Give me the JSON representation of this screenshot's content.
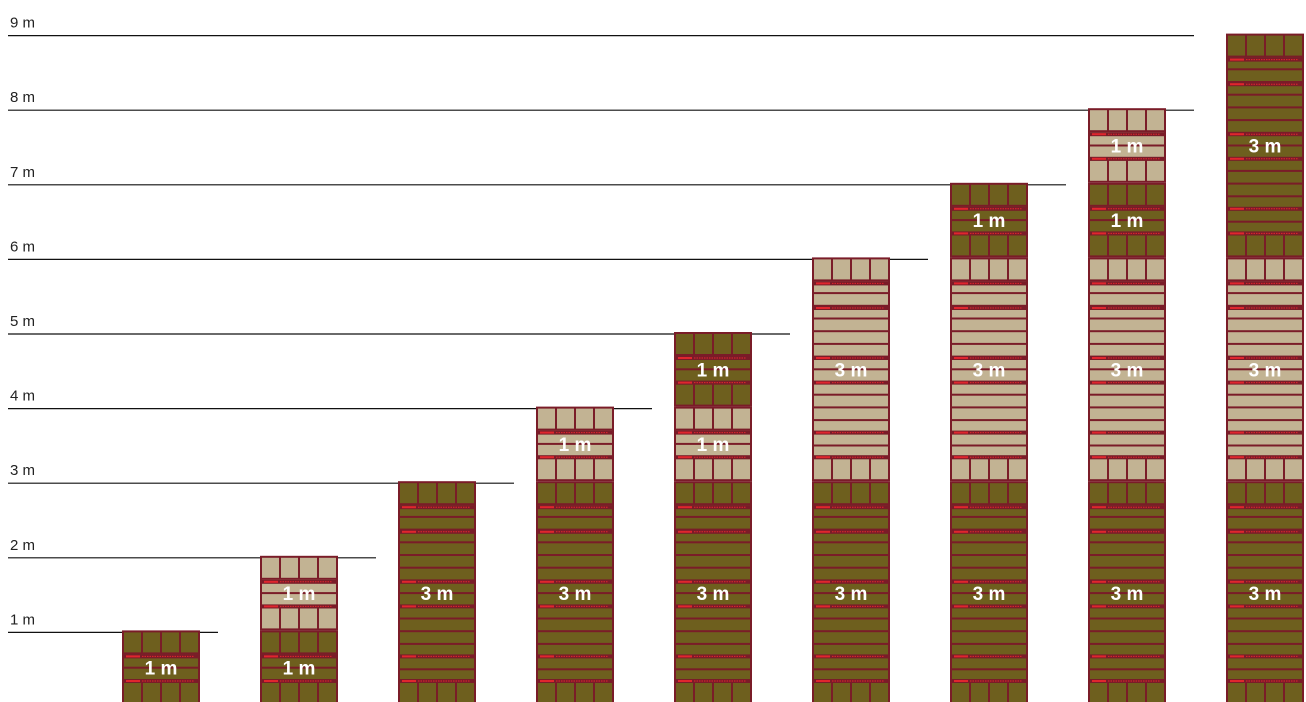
{
  "levels": [
    {
      "label": "1 m"
    },
    {
      "label": "2 m"
    },
    {
      "label": "3 m"
    },
    {
      "label": "4 m"
    },
    {
      "label": "5 m"
    },
    {
      "label": "6 m"
    },
    {
      "label": "7 m"
    },
    {
      "label": "8 m"
    },
    {
      "label": "9 m"
    }
  ],
  "columns": [
    {
      "modules": [
        {
          "size": 1,
          "label": "1 m",
          "color": "dark"
        }
      ]
    },
    {
      "modules": [
        {
          "size": 1,
          "label": "1 m",
          "color": "dark"
        },
        {
          "size": 1,
          "label": "1 m",
          "color": "light"
        }
      ]
    },
    {
      "modules": [
        {
          "size": 3,
          "label": "3 m",
          "color": "dark"
        }
      ]
    },
    {
      "modules": [
        {
          "size": 3,
          "label": "3 m",
          "color": "dark"
        },
        {
          "size": 1,
          "label": "1 m",
          "color": "light"
        }
      ]
    },
    {
      "modules": [
        {
          "size": 3,
          "label": "3 m",
          "color": "dark"
        },
        {
          "size": 1,
          "label": "1 m",
          "color": "light"
        },
        {
          "size": 1,
          "label": "1 m",
          "color": "dark"
        }
      ]
    },
    {
      "modules": [
        {
          "size": 3,
          "label": "3 m",
          "color": "dark"
        },
        {
          "size": 3,
          "label": "3 m",
          "color": "light"
        }
      ]
    },
    {
      "modules": [
        {
          "size": 3,
          "label": "3 m",
          "color": "dark"
        },
        {
          "size": 3,
          "label": "3 m",
          "color": "light"
        },
        {
          "size": 1,
          "label": "1 m",
          "color": "dark"
        }
      ]
    },
    {
      "modules": [
        {
          "size": 3,
          "label": "3 m",
          "color": "dark"
        },
        {
          "size": 3,
          "label": "3 m",
          "color": "light"
        },
        {
          "size": 1,
          "label": "1 m",
          "color": "dark"
        },
        {
          "size": 1,
          "label": "1 m",
          "color": "light"
        }
      ]
    },
    {
      "modules": [
        {
          "size": 3,
          "label": "3 m",
          "color": "dark"
        },
        {
          "size": 3,
          "label": "3 m",
          "color": "light"
        },
        {
          "size": 3,
          "label": "3 m",
          "color": "dark"
        }
      ]
    }
  ],
  "colors": {
    "dark_fill": "#6e5f1e",
    "light_fill": "#c2b393",
    "frame": "#7a1c28",
    "red_bar": "#e0262e",
    "grid_line": "#111111"
  }
}
